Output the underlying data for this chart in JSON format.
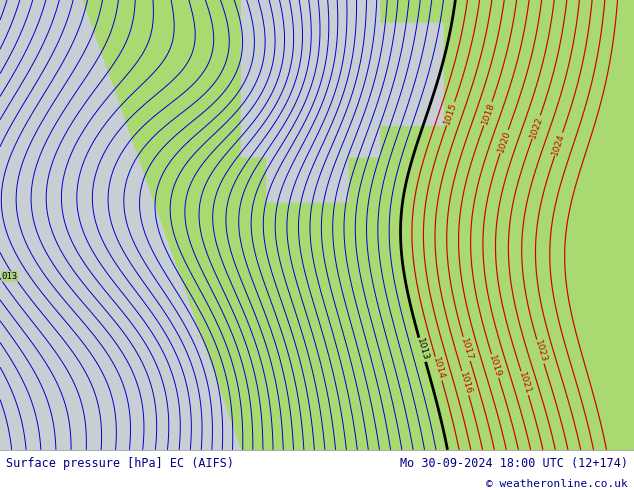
{
  "title_left": "Surface pressure [hPa] EC (AIFS)",
  "title_right": "Mo 30-09-2024 18:00 UTC (12+174)",
  "copyright": "© weatheronline.co.uk",
  "bg_color_land": "#aad972",
  "bg_color_sea_atlantic": "#c8cfd4",
  "bg_color_sea_north": "#c8cfd4",
  "bg_color_bottom": "#ffffff",
  "text_color": "#00008b",
  "contour_color_blue": "#0000cc",
  "contour_color_red": "#cc0000",
  "contour_color_black": "#000000",
  "figsize": [
    6.34,
    4.9
  ],
  "dpi": 100,
  "bottom_bar_height": 0.082,
  "labels_bottom_left": "Surface pressure [hPa] EC (AIFS)",
  "labels_bottom_right": "Mo 30-09-2024 18:00 UTC (12+174)"
}
